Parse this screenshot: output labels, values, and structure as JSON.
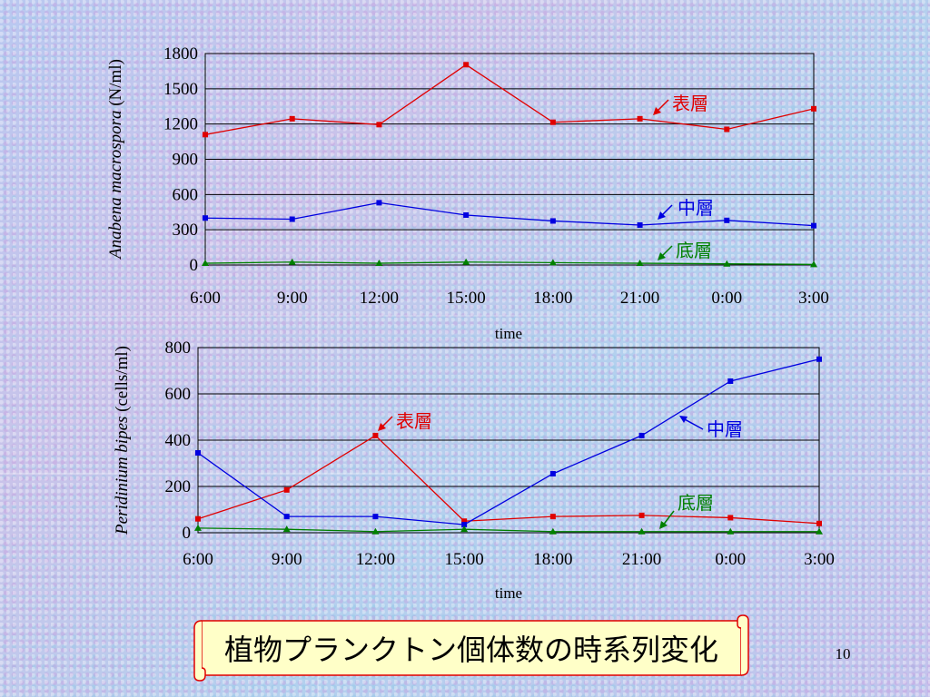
{
  "chart_data": [
    {
      "type": "line",
      "ylabel_italic": "Anabena macrospora",
      "ylabel_unit": " (N/ml)",
      "xlabel": "time",
      "categories": [
        "6:00",
        "9:00",
        "12:00",
        "15:00",
        "18:00",
        "21:00",
        "0:00",
        "3:00"
      ],
      "ylim": [
        0,
        1800
      ],
      "yticks": [
        0,
        300,
        600,
        900,
        1200,
        1500,
        1800
      ],
      "grid": true,
      "series": [
        {
          "name": "表層",
          "color": "#e00000",
          "values": [
            1110,
            1245,
            1195,
            1705,
            1215,
            1245,
            1155,
            1330
          ]
        },
        {
          "name": "中層",
          "color": "#0000e0",
          "values": [
            400,
            390,
            530,
            425,
            375,
            340,
            380,
            335
          ]
        },
        {
          "name": "底層",
          "color": "#008000",
          "values": [
            15,
            25,
            15,
            25,
            20,
            15,
            10,
            5
          ]
        }
      ]
    },
    {
      "type": "line",
      "ylabel_italic": "Peridinium bipes",
      "ylabel_unit": " (cells/ml)",
      "xlabel": "time",
      "categories": [
        "6:00",
        "9:00",
        "12:00",
        "15:00",
        "18:00",
        "21:00",
        "0:00",
        "3:00"
      ],
      "ylim": [
        0,
        800
      ],
      "yticks": [
        0,
        200,
        400,
        600,
        800
      ],
      "grid": true,
      "series": [
        {
          "name": "表層",
          "color": "#e00000",
          "values": [
            60,
            185,
            420,
            50,
            70,
            75,
            65,
            40
          ]
        },
        {
          "name": "中層",
          "color": "#0000e0",
          "values": [
            345,
            70,
            70,
            35,
            255,
            420,
            655,
            750
          ]
        },
        {
          "name": "底層",
          "color": "#008000",
          "values": [
            20,
            15,
            5,
            15,
            5,
            5,
            5,
            5
          ]
        }
      ]
    }
  ],
  "banner": {
    "title": "植物プランクトン個体数の時系列変化"
  },
  "page_number": "10"
}
